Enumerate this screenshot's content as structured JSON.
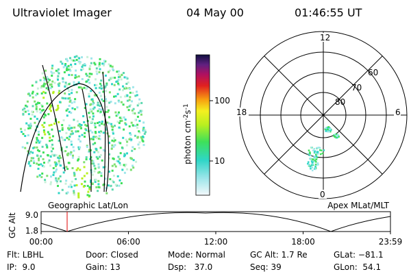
{
  "header": {
    "instrument": "Ultraviolet Imager",
    "date": "04 May 00",
    "time": "01:46:55 UT"
  },
  "colorbar": {
    "unit": [
      "photon cm",
      "-2",
      "s",
      "-1"
    ],
    "ticks": [
      "100",
      "10"
    ]
  },
  "polar": {
    "clock": [
      "12",
      "18",
      "6",
      "0"
    ],
    "rings": [
      "60",
      "70",
      "80"
    ]
  },
  "panels": {
    "left": "Geographic Lat/Lon",
    "right": "Apex MLat/MLT"
  },
  "altitude": {
    "label": "GC Alt",
    "ticks": [
      "9.0",
      "1.8"
    ],
    "times": [
      "00:00",
      "06:00",
      "12:00",
      "18:00",
      "23:59"
    ]
  },
  "status": [
    [
      "Flt: LBHL",
      "Door: Closed",
      "Mode: Normal",
      "GC Alt: 1.7 Re",
      "GLat: −81.1"
    ],
    [
      "IP:  9.0",
      "Gain: 13",
      "Dsp:   37.0",
      "Seq: 39",
      "GLon:  54.1"
    ]
  ]
}
